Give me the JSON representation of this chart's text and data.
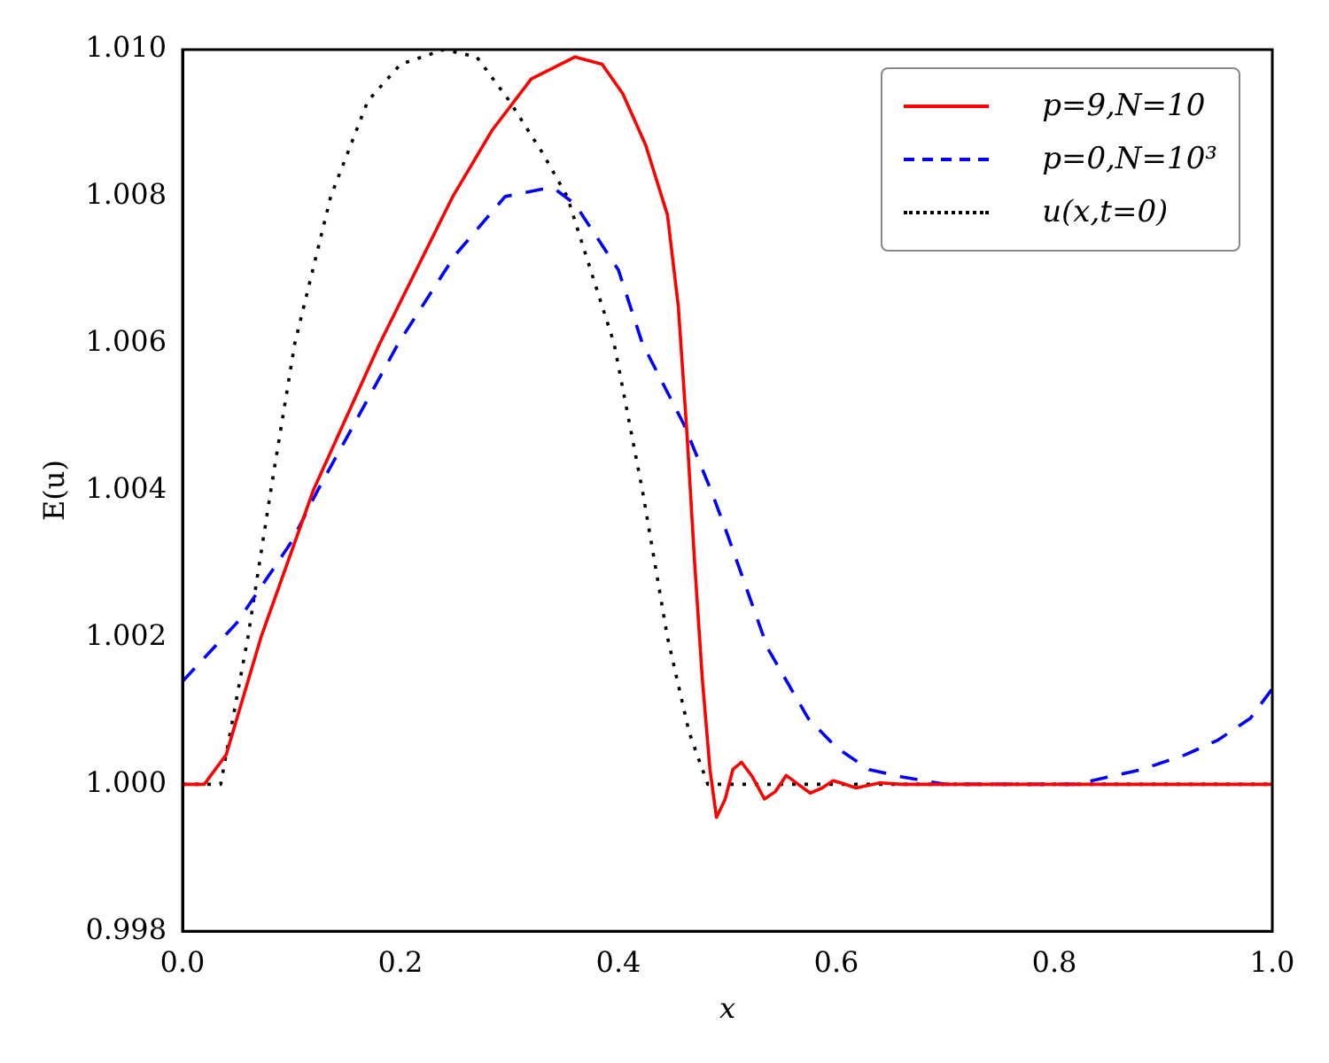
{
  "chart_data": {
    "type": "line",
    "xlabel": "x",
    "ylabel": "E(u)",
    "legend": "top right",
    "xlim": [
      0,
      1
    ],
    "xticks": [
      {
        "value": 0,
        "label": "0.0"
      },
      {
        "value": 0.2,
        "label": "0.2"
      },
      {
        "value": 0.4,
        "label": "0.4"
      },
      {
        "value": 0.6,
        "label": "0.6"
      },
      {
        "value": 0.8,
        "label": "0.8"
      },
      {
        "value": 1,
        "label": "1.0"
      }
    ],
    "ylim": [
      0.998,
      1.01
    ],
    "yticks": [
      0.998,
      {
        "value": 1,
        "label": "1.000"
      },
      1.002,
      1.004,
      1.006,
      1.008,
      {
        "value": 1.01,
        "label": "1.010"
      }
    ],
    "series": [
      {
        "name": "p=9,N=10",
        "color": "#ff0000",
        "line_style": "solid",
        "x": [
          0,
          0.02,
          0.04,
          0.072,
          0.12,
          0.181,
          0.248,
          0.284,
          0.32,
          0.36,
          0.385,
          0.404,
          0.425,
          0.445,
          0.455,
          0.463,
          0.47,
          0.477,
          0.484,
          0.49,
          0.498,
          0.505,
          0.513,
          0.523,
          0.534,
          0.544,
          0.554,
          0.565,
          0.576,
          0.587,
          0.597,
          0.608,
          0.618,
          0.64,
          0.66,
          1
        ],
        "values": [
          1,
          1,
          1.0004,
          1.002,
          1.004,
          1.006,
          1.008,
          1.0089,
          1.0096,
          1.0099,
          1.0098,
          1.0094,
          1.0087,
          1.00775,
          1.0065,
          1.00475,
          1.003,
          1.00143,
          1.0002,
          0.99955,
          0.9998,
          1.0002,
          1.0003,
          1.0001,
          0.9998,
          0.9999,
          1.00012,
          1.0,
          0.99988,
          0.99995,
          1.00005,
          1.0,
          0.99995,
          1.00002,
          1,
          1
        ]
      },
      {
        "name": "p=0,N=10³",
        "color": "#0000ff",
        "line_style": "dashed",
        "x": [
          0,
          0.05,
          0.1,
          0.124,
          0.15,
          0.198,
          0.25,
          0.296,
          0.33,
          0.342,
          0.36,
          0.4,
          0.422,
          0.46,
          0.485,
          0.5,
          0.537,
          0.574,
          0.6,
          0.63,
          0.66,
          0.7,
          0.82,
          0.85,
          0.88,
          0.92,
          0.95,
          0.98,
          1
        ],
        "values": [
          1.0014,
          1.0022,
          1.0033,
          1.004,
          1.0047,
          1.006,
          1.0072,
          1.008,
          1.0081,
          1.0081,
          1.0079,
          1.007,
          1.006,
          1.0049,
          1.004,
          1.0034,
          1.00185,
          1.0009,
          1.0005,
          1.0002,
          1.0001,
          1,
          1,
          1.0001,
          1.0002,
          1.0004,
          1.0006,
          1.0009,
          1.0013
        ]
      },
      {
        "name": "u(x,t=0)",
        "color": "#000000",
        "line_style": "dotted",
        "x": [
          0,
          0.03,
          0.035,
          0.06,
          0.081,
          0.103,
          0.136,
          0.17,
          0.2,
          0.24,
          0.27,
          0.3,
          0.33,
          0.353,
          0.396,
          0.422,
          0.445,
          0.465,
          0.482,
          1
        ],
        "values": [
          1,
          1,
          1,
          1.002,
          1.004,
          1.006,
          1.008,
          1.0093,
          1.0098,
          1.01,
          1.0099,
          1.0093,
          1.0086,
          1.008,
          1.006,
          1.004,
          1.002,
          1.0007,
          1,
          1
        ]
      }
    ]
  }
}
